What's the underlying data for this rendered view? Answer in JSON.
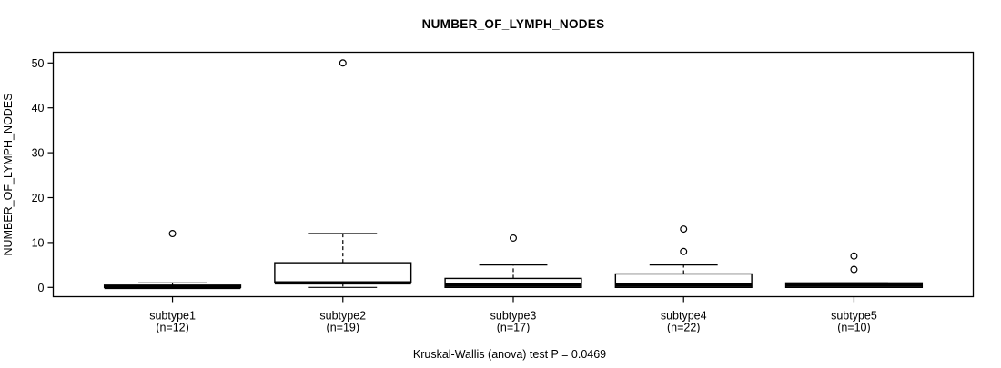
{
  "chart_data": {
    "type": "boxplot",
    "title": "NUMBER_OF_LYMPH_NODES",
    "ylabel": "NUMBER_OF_LYMPH_NODES",
    "caption": "Kruskal-Wallis (anova) test P = 0.0469",
    "p_value": 0.0469,
    "ylim": [
      0,
      50
    ],
    "yticks": [
      0,
      10,
      20,
      30,
      40,
      50
    ],
    "grid": false,
    "legend": "none",
    "colors": {
      "stroke": "#000000",
      "box_fill": "#ffffff",
      "background": "#ffffff"
    },
    "groups": [
      {
        "label": "subtype1",
        "n_label": "(n=12)",
        "n": 12,
        "whisker_low": 0,
        "q1": 0,
        "median": 0,
        "q3": 0.5,
        "whisker_high": 1,
        "outliers": [
          12
        ]
      },
      {
        "label": "subtype2",
        "n_label": "(n=19)",
        "n": 19,
        "whisker_low": 0,
        "q1": 1,
        "median": 1,
        "q3": 5.5,
        "whisker_high": 12,
        "outliers": [
          50
        ]
      },
      {
        "label": "subtype3",
        "n_label": "(n=17)",
        "n": 17,
        "whisker_low": 0,
        "q1": 0,
        "median": 0.5,
        "q3": 2,
        "whisker_high": 5,
        "outliers": [
          11
        ]
      },
      {
        "label": "subtype4",
        "n_label": "(n=22)",
        "n": 22,
        "whisker_low": 0,
        "q1": 0,
        "median": 0.5,
        "q3": 3,
        "whisker_high": 5,
        "outliers": [
          8,
          13
        ]
      },
      {
        "label": "subtype5",
        "n_label": "(n=10)",
        "n": 10,
        "whisker_low": 0,
        "q1": 0,
        "median": 0.5,
        "q3": 1,
        "whisker_high": 1,
        "outliers": [
          4,
          7
        ]
      }
    ]
  }
}
